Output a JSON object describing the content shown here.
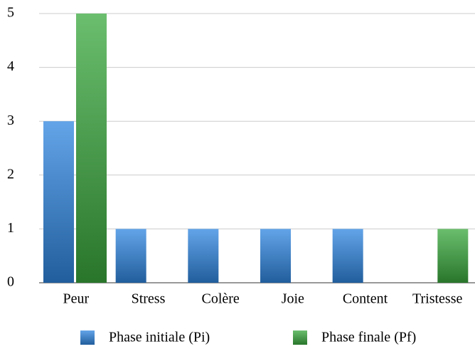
{
  "chart_data": {
    "type": "bar",
    "categories": [
      "Peur",
      "Stress",
      "Colère",
      "Joie",
      "Content",
      "Tristesse"
    ],
    "series": [
      {
        "name": "Phase initiale (Pi)",
        "color": "#2f86e0",
        "values": [
          3,
          1,
          1,
          1,
          1,
          0
        ]
      },
      {
        "name": "Phase finale (Pf)",
        "color": "#3aa83e",
        "values": [
          5,
          0,
          0,
          0,
          0,
          1
        ]
      }
    ],
    "ylim": [
      0,
      5
    ],
    "yticks": [
      0,
      1,
      2,
      3,
      4,
      5
    ],
    "grid": true,
    "legend": "bottom"
  }
}
